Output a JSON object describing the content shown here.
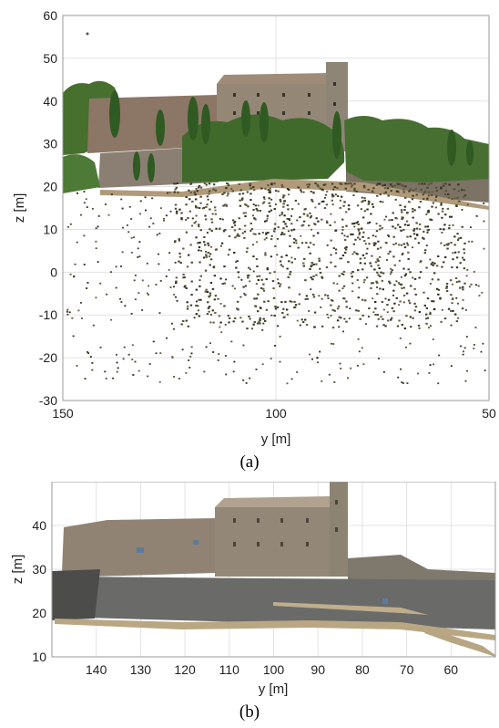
{
  "chart_data": [
    {
      "type": "scatter",
      "panel_label": "(a)",
      "xlabel": "y [m]",
      "ylabel": "z [m]",
      "xlim": [
        150,
        50
      ],
      "ylim": [
        -30,
        60
      ],
      "x_ticks": [
        150,
        100,
        50
      ],
      "y_ticks": [
        60,
        50,
        40,
        30,
        20,
        10,
        0,
        -10,
        -20,
        -30
      ],
      "grid": true,
      "colors": {
        "foliage": "#4f7a34",
        "stone": "#8f7e6a",
        "roof": "#a48f7a",
        "points": "#3c3a28"
      }
    },
    {
      "type": "scatter",
      "panel_label": "(b)",
      "xlabel": "y [m]",
      "ylabel": "z [m]",
      "xlim": [
        150,
        50
      ],
      "ylim": [
        10,
        50
      ],
      "x_ticks": [
        140,
        130,
        120,
        110,
        100,
        90,
        80,
        70,
        60
      ],
      "y_ticks": [
        40,
        30,
        20,
        10
      ],
      "grid": true,
      "colors": {
        "wall": "#6d6d6b",
        "stone": "#928776",
        "roof": "#b3a492",
        "ground": "#b8a583"
      }
    }
  ]
}
